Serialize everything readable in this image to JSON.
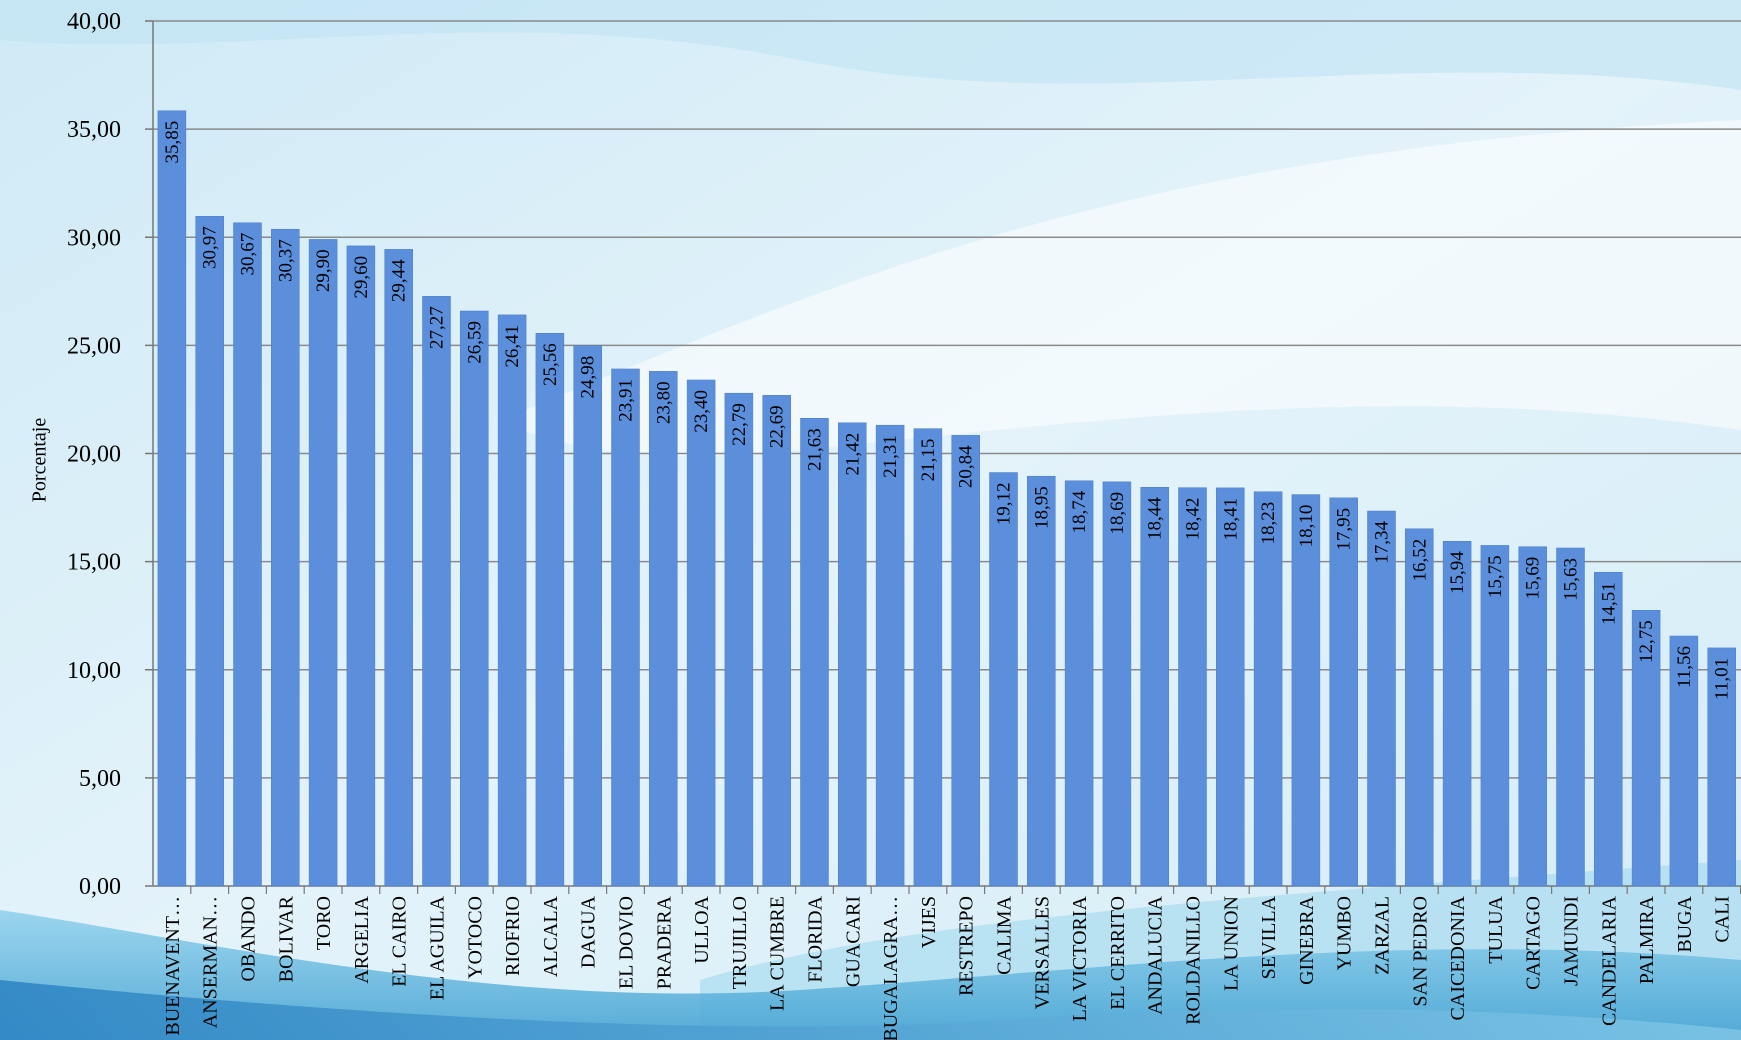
{
  "chart_data": {
    "type": "bar",
    "title": "",
    "xlabel": "",
    "ylabel": "Porcentaje",
    "ylim": [
      0,
      40
    ],
    "y_ticks": [
      "0,00",
      "5,00",
      "10,00",
      "15,00",
      "20,00",
      "25,00",
      "30,00",
      "35,00",
      "40,00"
    ],
    "grid": true,
    "bar_color": "#5b8fdc",
    "categories": [
      "BUENAVENT…",
      "ANSERMAN…",
      "OBANDO",
      "BOLIVAR",
      "TORO",
      "ARGELIA",
      "EL CAIRO",
      "EL AGUILA",
      "YOTOCO",
      "RIOFRIO",
      "ALCALA",
      "DAGUA",
      "EL DOVIO",
      "PRADERA",
      "ULLOA",
      "TRUJILLO",
      "LA CUMBRE",
      "FLORIDA",
      "GUACARI",
      "BUGALAGRA…",
      "VIJES",
      "RESTREPO",
      "CALIMA",
      "VERSALLES",
      "LA VICTORIA",
      "EL CERRITO",
      "ANDALUCIA",
      "ROLDANILLO",
      "LA UNION",
      "SEVILLA",
      "GINEBRA",
      "YUMBO",
      "ZARZAL",
      "SAN PEDRO",
      "CAICEDONIA",
      "TULUA",
      "CARTAGO",
      "JAMUNDI",
      "CANDELARIA",
      "PALMIRA",
      "BUGA",
      "CALI"
    ],
    "values": [
      35.85,
      30.97,
      30.67,
      30.37,
      29.9,
      29.6,
      29.44,
      27.27,
      26.59,
      26.41,
      25.56,
      24.98,
      23.91,
      23.8,
      23.4,
      22.79,
      22.69,
      21.63,
      21.42,
      21.31,
      21.15,
      20.84,
      19.12,
      18.95,
      18.74,
      18.69,
      18.44,
      18.42,
      18.41,
      18.23,
      18.1,
      17.95,
      17.34,
      16.52,
      15.94,
      15.75,
      15.69,
      15.63,
      14.51,
      12.75,
      11.56,
      11.01
    ],
    "data_labels": [
      "35,85",
      "30,97",
      "30,67",
      "30,37",
      "29,90",
      "29,60",
      "29,44",
      "27,27",
      "26,59",
      "26,41",
      "25,56",
      "24,98",
      "23,91",
      "23,80",
      "23,40",
      "22,79",
      "22,69",
      "21,63",
      "21,42",
      "21,31",
      "21,15",
      "20,84",
      "19,12",
      "18,95",
      "18,74",
      "18,69",
      "18,44",
      "18,42",
      "18,41",
      "18,23",
      "18,10",
      "17,95",
      "17,34",
      "16,52",
      "15,94",
      "15,75",
      "15,69",
      "15,63",
      "14,51",
      "12,75",
      "11,56",
      "11,01"
    ]
  }
}
